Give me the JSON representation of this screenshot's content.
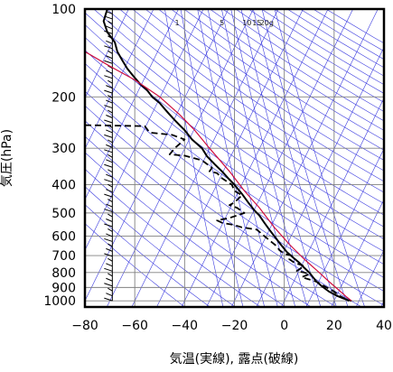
{
  "chart_data": {
    "type": "line",
    "title": "",
    "xlabel": "気温(実線), 露点(破線)",
    "ylabel": "気圧(hPa)",
    "xlim": [
      -80,
      40
    ],
    "ylim": [
      1050,
      100
    ],
    "y_scale": "log",
    "x_ticks": [
      -80,
      -60,
      -40,
      -20,
      0,
      20,
      40
    ],
    "x_tick_labels": [
      "−80",
      "−60",
      "−40",
      "−20",
      "0",
      "20",
      "40"
    ],
    "y_ticks": [
      100,
      200,
      300,
      400,
      500,
      600,
      700,
      800,
      900,
      1000
    ],
    "y_tick_labels": [
      "100",
      "200",
      "300",
      "400",
      "500",
      "600",
      "700",
      "800",
      "900",
      "1000"
    ],
    "mixing_ratio_labels": [
      "1",
      "5",
      "10",
      "15",
      "20g"
    ],
    "colors": {
      "temperature": "#000000",
      "dewpoint": "#000000",
      "parcel": "#d01040",
      "isotherm": "#3a3adf",
      "dry_adiabat": "#3a3adf",
      "mixing_ratio": "#3a3adf",
      "grid": "#808080"
    },
    "series": [
      {
        "style": "solid",
        "points": [
          [
            -71,
            100
          ],
          [
            -72.5,
            110
          ],
          [
            -71,
            120
          ],
          [
            -68,
            130
          ],
          [
            -67,
            140
          ],
          [
            -65,
            150
          ],
          [
            -63,
            160
          ],
          [
            -60.5,
            170
          ],
          [
            -58,
            180
          ],
          [
            -55,
            190
          ],
          [
            -53,
            200
          ],
          [
            -50,
            210
          ],
          [
            -48,
            220
          ],
          [
            -46,
            230
          ],
          [
            -44,
            240
          ],
          [
            -42,
            250
          ],
          [
            -40,
            260
          ],
          [
            -38.5,
            270
          ],
          [
            -37,
            280
          ],
          [
            -35,
            290
          ],
          [
            -33,
            300
          ],
          [
            -31,
            320
          ],
          [
            -28,
            340
          ],
          [
            -25,
            360
          ],
          [
            -22.5,
            380
          ],
          [
            -20,
            400
          ],
          [
            -17,
            430
          ],
          [
            -14.5,
            460
          ],
          [
            -12,
            490
          ],
          [
            -10,
            510
          ],
          [
            -8,
            540
          ],
          [
            -6,
            570
          ],
          [
            -4,
            600
          ],
          [
            -1.5,
            640
          ],
          [
            1,
            680
          ],
          [
            3.5,
            710
          ],
          [
            6,
            740
          ],
          [
            8,
            770
          ],
          [
            10,
            800
          ],
          [
            11.5,
            830
          ],
          [
            13,
            860
          ],
          [
            15,
            890
          ],
          [
            18,
            930
          ],
          [
            21,
            960
          ],
          [
            23.5,
            980
          ],
          [
            25,
            990
          ],
          [
            26,
            1000
          ]
        ]
      },
      {
        "style": "dashed",
        "points": [
          [
            -80,
            250
          ],
          [
            -56,
            252
          ],
          [
            -54,
            265
          ],
          [
            -45,
            270
          ],
          [
            -40,
            280
          ],
          [
            -42,
            290
          ],
          [
            -44,
            300
          ],
          [
            -46,
            315
          ],
          [
            -40,
            318
          ],
          [
            -33,
            330
          ],
          [
            -29,
            350
          ],
          [
            -30,
            360
          ],
          [
            -27,
            365
          ],
          [
            -25,
            380
          ],
          [
            -23,
            390
          ],
          [
            -21,
            400
          ],
          [
            -20,
            420
          ],
          [
            -17,
            435
          ],
          [
            -20,
            460
          ],
          [
            -22,
            470
          ],
          [
            -19,
            480
          ],
          [
            -16,
            500
          ],
          [
            -22,
            520
          ],
          [
            -27,
            530
          ],
          [
            -25,
            540
          ],
          [
            -20,
            550
          ],
          [
            -17,
            560
          ],
          [
            -11,
            570
          ],
          [
            -8,
            600
          ],
          [
            -5,
            630
          ],
          [
            -3,
            650
          ],
          [
            -2,
            670
          ],
          [
            0,
            690
          ],
          [
            3,
            700
          ],
          [
            2,
            720
          ],
          [
            4,
            740
          ],
          [
            8,
            760
          ],
          [
            5,
            790
          ],
          [
            8,
            800
          ],
          [
            10,
            810
          ],
          [
            7,
            830
          ],
          [
            13,
            860
          ],
          [
            15,
            880
          ],
          [
            17,
            900
          ],
          [
            20,
            930
          ],
          [
            22,
            960
          ],
          [
            25,
            990
          ],
          [
            27,
            1000
          ]
        ]
      },
      {
        "style": "solid",
        "points": [
          [
            -80,
            140
          ],
          [
            -70,
            157
          ],
          [
            -60,
            175
          ],
          [
            -50,
            200
          ],
          [
            -42,
            230
          ],
          [
            -36,
            260
          ],
          [
            -30,
            300
          ],
          [
            -22,
            360
          ],
          [
            -16,
            420
          ],
          [
            -10,
            480
          ],
          [
            -4,
            560
          ],
          [
            2,
            640
          ],
          [
            8,
            720
          ],
          [
            14,
            800
          ],
          [
            18,
            860
          ],
          [
            22,
            920
          ],
          [
            25,
            970
          ],
          [
            27,
            1000
          ]
        ]
      }
    ]
  }
}
